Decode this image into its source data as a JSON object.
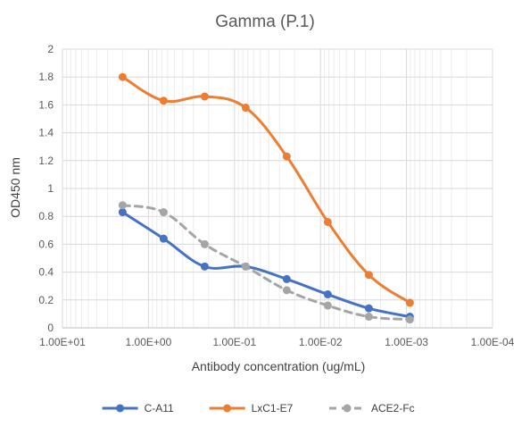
{
  "chart_data": {
    "type": "line",
    "title": "Gamma (P.1)",
    "xlabel": "Antibody concentration (ug/mL)",
    "ylabel": "OD450 nm",
    "x_scale": "log",
    "x_reversed": true,
    "xlim": [
      10,
      0.0001
    ],
    "ylim": [
      0,
      2
    ],
    "y_ticks": [
      0,
      0.2,
      0.4,
      0.6,
      0.8,
      1,
      1.2,
      1.4,
      1.6,
      1.8,
      2
    ],
    "x_ticks": [
      10,
      1,
      0.1,
      0.01,
      0.001,
      0.0001
    ],
    "x_tick_labels": [
      "1.00E+01",
      "1.00E+00",
      "1.00E-01",
      "1.00E-02",
      "1.00E-03",
      "1.00E-04"
    ],
    "grid": true,
    "legend_position": "bottom",
    "x": [
      2,
      0.667,
      0.222,
      0.0741,
      0.0247,
      0.00823,
      0.00274,
      0.000914
    ],
    "series": [
      {
        "name": "C-A11",
        "values": [
          0.83,
          0.64,
          0.44,
          0.44,
          0.35,
          0.24,
          0.14,
          0.08
        ],
        "color": "#4472c4",
        "dash": "solid"
      },
      {
        "name": "LxC1-E7",
        "values": [
          1.8,
          1.63,
          1.66,
          1.58,
          1.23,
          0.76,
          0.38,
          0.18
        ],
        "color": "#ed7d31",
        "dash": "solid"
      },
      {
        "name": "ACE2-Fc",
        "values": [
          0.88,
          0.83,
          0.6,
          0.44,
          0.27,
          0.16,
          0.08,
          0.06
        ],
        "color": "#a5a5a5",
        "dash": "dashed"
      }
    ]
  }
}
